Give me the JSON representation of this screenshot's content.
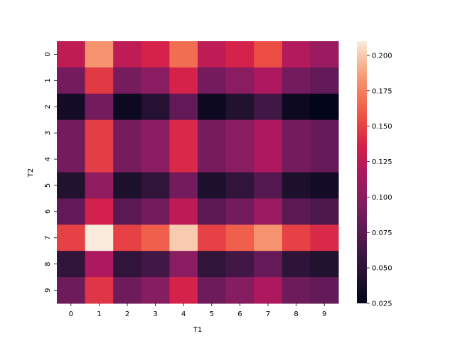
{
  "chart_data": {
    "type": "heatmap",
    "title": "",
    "xlabel": "T1",
    "ylabel": "T2",
    "x_categories": [
      "0",
      "1",
      "2",
      "3",
      "4",
      "5",
      "6",
      "7",
      "8",
      "9"
    ],
    "y_categories": [
      "0",
      "1",
      "2",
      "3",
      "4",
      "5",
      "6",
      "7",
      "8",
      "9"
    ],
    "values": [
      [
        0.127,
        0.182,
        0.126,
        0.137,
        0.168,
        0.126,
        0.137,
        0.155,
        0.121,
        0.108
      ],
      [
        0.088,
        0.147,
        0.09,
        0.1,
        0.137,
        0.088,
        0.1,
        0.118,
        0.088,
        0.079
      ],
      [
        0.035,
        0.088,
        0.031,
        0.045,
        0.079,
        0.031,
        0.043,
        0.062,
        0.031,
        0.025
      ],
      [
        0.088,
        0.148,
        0.09,
        0.1,
        0.14,
        0.09,
        0.1,
        0.118,
        0.088,
        0.082
      ],
      [
        0.088,
        0.148,
        0.09,
        0.1,
        0.14,
        0.09,
        0.1,
        0.118,
        0.088,
        0.082
      ],
      [
        0.043,
        0.104,
        0.04,
        0.052,
        0.088,
        0.04,
        0.052,
        0.072,
        0.04,
        0.035
      ],
      [
        0.079,
        0.135,
        0.075,
        0.088,
        0.125,
        0.075,
        0.088,
        0.108,
        0.075,
        0.068
      ],
      [
        0.15,
        0.21,
        0.15,
        0.162,
        0.2,
        0.15,
        0.162,
        0.182,
        0.15,
        0.14
      ],
      [
        0.052,
        0.118,
        0.052,
        0.062,
        0.1,
        0.052,
        0.062,
        0.082,
        0.05,
        0.043
      ],
      [
        0.085,
        0.145,
        0.085,
        0.098,
        0.137,
        0.085,
        0.098,
        0.118,
        0.085,
        0.079
      ]
    ],
    "vmin": 0.025,
    "vmax": 0.21,
    "colormap": "rocket",
    "colorbar_ticks": [
      "0.025",
      "0.050",
      "0.075",
      "0.100",
      "0.125",
      "0.150",
      "0.175",
      "0.200"
    ],
    "colorbar_tick_values": [
      0.025,
      0.05,
      0.075,
      0.1,
      0.125,
      0.15,
      0.175,
      0.2
    ],
    "grid": false,
    "colorbar_position": "right"
  }
}
